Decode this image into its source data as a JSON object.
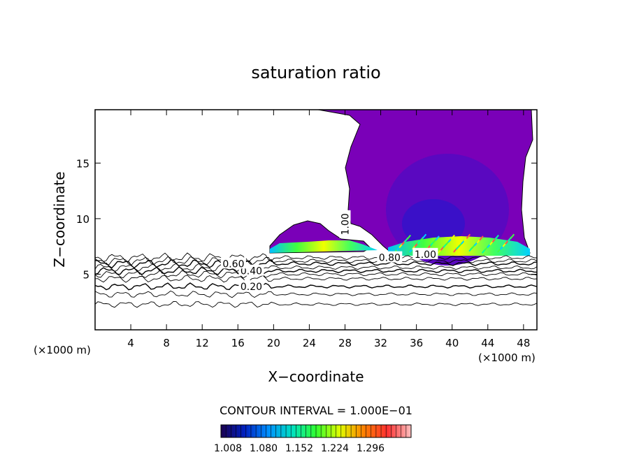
{
  "chart_data": {
    "type": "contour",
    "title": "saturation ratio",
    "xlabel": "X−coordinate",
    "ylabel": "Z−coordinate",
    "x_unit_label_left": "(×1000 m)",
    "x_unit_label_right": "(×1000 m)",
    "xlim": [
      0,
      49.5
    ],
    "ylim": [
      0,
      19.8
    ],
    "x_ticks": [
      4,
      8,
      12,
      16,
      20,
      24,
      28,
      32,
      36,
      40,
      44,
      48
    ],
    "y_ticks": [
      5,
      10,
      15
    ],
    "grid": false,
    "contour_lines": [
      {
        "level": 0.2,
        "label": "0.20",
        "z": 3.9,
        "label_x": 17.5
      },
      {
        "level": 0.4,
        "label": "0.40",
        "z": 5.3,
        "label_x": 17.5
      },
      {
        "level": 0.6,
        "label": "0.60",
        "z": 5.95,
        "label_x": 15.5
      },
      {
        "level": 0.8,
        "label": "0.80",
        "z": 6.5,
        "label_x": 33.0
      },
      {
        "level": 1.0,
        "label": "1.00",
        "z": 6.8,
        "label_x": 37.0
      },
      {
        "level": 1.0,
        "label": "1.00",
        "z": 9.5,
        "label_x": 28.0
      }
    ],
    "contour_interval_text": "CONTOUR INTERVAL = 1.000E−01",
    "colorbar": {
      "ticks": [
        "1.008",
        "1.080",
        "1.152",
        "1.224",
        "1.296"
      ],
      "colors": [
        "#1a0050",
        "#0020c0",
        "#0090ff",
        "#00e0c0",
        "#30ff30",
        "#e0ff00",
        "#ff8000",
        "#ff3030",
        "#ffc0c0"
      ]
    },
    "colors": {
      "supersaturated_fill": "#7a00b8",
      "core_fill": "#3a10c8",
      "lines": "#000000"
    }
  }
}
